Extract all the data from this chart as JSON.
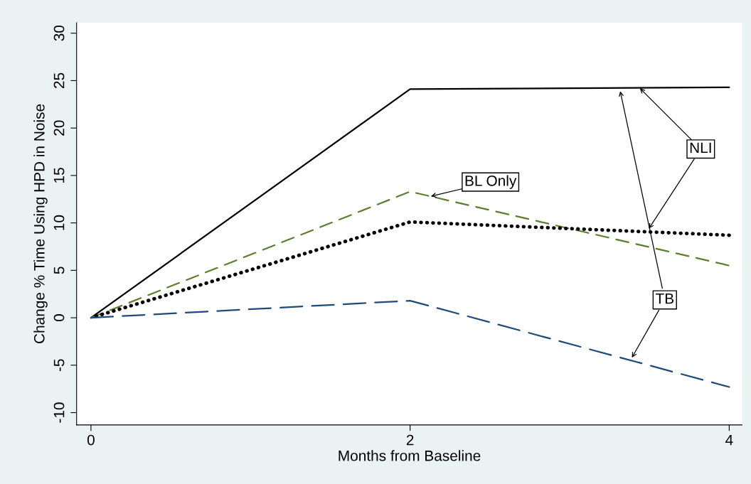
{
  "chart_data": {
    "type": "line",
    "xlabel": "Months from Baseline",
    "ylabel": "Change % Time Using HPD in Noise",
    "x": [
      0,
      2,
      4
    ],
    "series": [
      {
        "color": "#000000",
        "line_style": "solid",
        "values": [
          0,
          24.1,
          24.3
        ]
      },
      {
        "color": "#5b7f2f",
        "line_style": "dashed",
        "values": [
          0,
          13.3,
          5.5
        ]
      },
      {
        "color": "#000000",
        "line_style": "dotted",
        "values": [
          0,
          10.1,
          8.7
        ]
      },
      {
        "color": "#1f4a7a",
        "line_style": "longdash",
        "values": [
          0,
          1.8,
          -7.3
        ]
      }
    ],
    "xlim": [
      -0.09,
      4.08
    ],
    "ylim": [
      -11.3,
      31.1
    ],
    "xticks": [
      0,
      2,
      4
    ],
    "yticks": [
      -10,
      -5,
      0,
      5,
      10,
      15,
      20,
      25,
      30
    ],
    "grid": false,
    "marker": "none",
    "annotations": [
      {
        "text": "NLI",
        "x": 3.44,
        "y": 24.2
      },
      {
        "text": "BL Only",
        "x": 2.13,
        "y": 12.8
      },
      {
        "text": "TB",
        "x": 3.39,
        "y": -4.2
      }
    ]
  }
}
